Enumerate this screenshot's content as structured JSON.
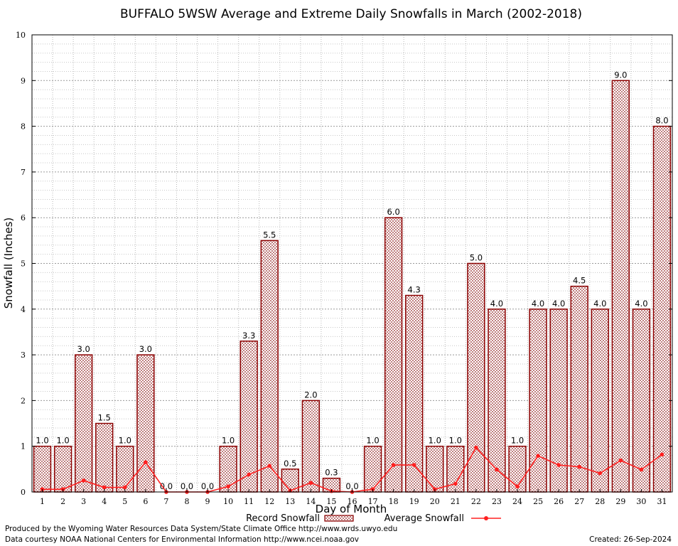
{
  "chart_data": {
    "type": "bar",
    "title": "BUFFALO 5WSW Average and Extreme Daily Snowfalls in March (2002-2018)",
    "xlabel": "Day of Month",
    "ylabel": "Snowfall (Inches)",
    "ylim": [
      0,
      10
    ],
    "yticks": [
      "0",
      "1",
      "2",
      "3",
      "4",
      "5",
      "6",
      "7",
      "8",
      "9",
      "10"
    ],
    "grid": true,
    "legend_position": "bottom",
    "categories": [
      "1",
      "2",
      "3",
      "4",
      "5",
      "6",
      "7",
      "8",
      "9",
      "10",
      "11",
      "12",
      "13",
      "14",
      "15",
      "16",
      "17",
      "18",
      "19",
      "20",
      "21",
      "22",
      "23",
      "24",
      "25",
      "26",
      "27",
      "28",
      "29",
      "30",
      "31"
    ],
    "series": [
      {
        "name": "Record Snowfall",
        "type": "bar",
        "color": "#8b0000",
        "values": [
          1.0,
          1.0,
          3.0,
          1.5,
          1.0,
          3.0,
          0.0,
          0.0,
          0.0,
          1.0,
          3.3,
          5.5,
          0.5,
          2.0,
          0.3,
          0.0,
          1.0,
          6.0,
          4.3,
          1.0,
          1.0,
          5.0,
          4.0,
          1.0,
          4.0,
          4.0,
          4.5,
          4.0,
          9.0,
          4.0,
          8.0
        ],
        "labels": [
          "1.0",
          "1.0",
          "3.0",
          "1.5",
          "1.0",
          "3.0",
          "0.0",
          "0.0",
          "0.0",
          "1.0",
          "3.3",
          "5.5",
          "0.5",
          "2.0",
          "0.3",
          "0.0",
          "1.0",
          "6.0",
          "4.3",
          "1.0",
          "1.0",
          "5.0",
          "4.0",
          "1.0",
          "4.0",
          "4.0",
          "4.5",
          "4.0",
          "9.0",
          "4.0",
          "8.0"
        ]
      },
      {
        "name": "Average Snowfall",
        "type": "line",
        "color": "#ff2020",
        "values": [
          0.06,
          0.06,
          0.25,
          0.1,
          0.1,
          0.65,
          0.0,
          0.0,
          0.0,
          0.12,
          0.38,
          0.57,
          0.03,
          0.2,
          0.02,
          0.0,
          0.06,
          0.59,
          0.59,
          0.06,
          0.18,
          0.97,
          0.49,
          0.12,
          0.79,
          0.59,
          0.55,
          0.41,
          0.69,
          0.49,
          0.82
        ]
      }
    ]
  },
  "footer": {
    "line1": "Produced by the Wyoming Water Resources Data System/State Climate Office http://www.wrds.uwyo.edu",
    "line2": "Data courtesy NOAA National Centers for Environmental Information http://www.ncei.noaa.gov",
    "created": "Created:  26-Sep-2024"
  }
}
